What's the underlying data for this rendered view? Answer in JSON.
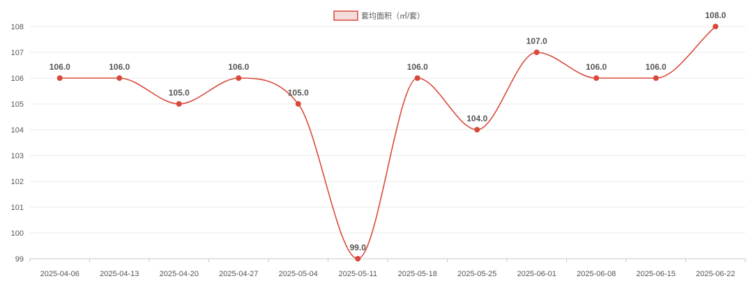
{
  "chart_data": {
    "type": "line",
    "smooth": true,
    "x": [
      "2025-04-06",
      "2025-04-13",
      "2025-04-20",
      "2025-04-27",
      "2025-05-04",
      "2025-05-11",
      "2025-05-18",
      "2025-05-25",
      "2025-06-01",
      "2025-06-08",
      "2025-06-15",
      "2025-06-22"
    ],
    "series": [
      {
        "name": "套均面积（㎡/套）",
        "values": [
          106.0,
          106.0,
          105.0,
          106.0,
          105.0,
          99.0,
          106.0,
          104.0,
          107.0,
          106.0,
          106.0,
          108.0
        ],
        "labels": [
          "106.0",
          "106.0",
          "105.0",
          "106.0",
          "105.0",
          "99.0",
          "106.0",
          "104.0",
          "107.0",
          "106.0",
          "106.0",
          "108.0"
        ],
        "color": "#d9493a",
        "legend_fill": "#f3dcdc"
      }
    ],
    "ylim": [
      99,
      108
    ],
    "yticks": [
      99,
      100,
      101,
      102,
      103,
      104,
      105,
      106,
      107,
      108
    ],
    "xlabel": "",
    "ylabel": "",
    "grid": true,
    "legend": "top-center"
  }
}
